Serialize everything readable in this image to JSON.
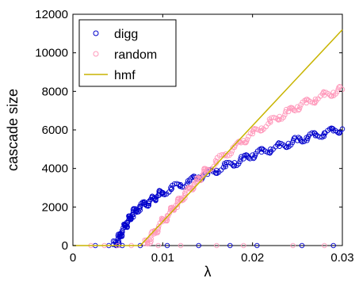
{
  "chart_data": {
    "type": "scatter",
    "xlabel": "λ",
    "ylabel": "cascade size",
    "xlim": [
      0,
      0.03
    ],
    "ylim": [
      0,
      12000
    ],
    "x_ticks": [
      {
        "value": 0,
        "label": "0"
      },
      {
        "value": 0.01,
        "label": "0.01"
      },
      {
        "value": 0.02,
        "label": "0.02"
      },
      {
        "value": 0.03,
        "label": "0.03"
      }
    ],
    "y_ticks": [
      {
        "value": 0,
        "label": "0"
      },
      {
        "value": 2000,
        "label": "2000"
      },
      {
        "value": 4000,
        "label": "4000"
      },
      {
        "value": 6000,
        "label": "6000"
      },
      {
        "value": 8000,
        "label": "8000"
      },
      {
        "value": 10000,
        "label": "10000"
      },
      {
        "value": 12000,
        "label": "12000"
      }
    ],
    "grid": false,
    "legend_position": "top-left",
    "series": [
      {
        "name": "digg",
        "kind": "scatter",
        "color": "#0000cc",
        "points": [
          [
            0.0045,
            50
          ],
          [
            0.005,
            200
          ],
          [
            0.0052,
            450
          ],
          [
            0.0055,
            700
          ],
          [
            0.0058,
            950
          ],
          [
            0.006,
            1200
          ],
          [
            0.0063,
            1400
          ],
          [
            0.0066,
            1600
          ],
          [
            0.007,
            1800
          ],
          [
            0.0075,
            2000
          ],
          [
            0.008,
            2150
          ],
          [
            0.0085,
            2300
          ],
          [
            0.009,
            2450
          ],
          [
            0.0095,
            2600
          ],
          [
            0.01,
            2750
          ],
          [
            0.011,
            2950
          ],
          [
            0.012,
            3150
          ],
          [
            0.013,
            3350
          ],
          [
            0.014,
            3550
          ],
          [
            0.015,
            3700
          ],
          [
            0.016,
            3900
          ],
          [
            0.017,
            4100
          ],
          [
            0.018,
            4300
          ],
          [
            0.019,
            4500
          ],
          [
            0.02,
            4700
          ],
          [
            0.021,
            4850
          ],
          [
            0.022,
            5000
          ],
          [
            0.023,
            5150
          ],
          [
            0.024,
            5300
          ],
          [
            0.025,
            5450
          ],
          [
            0.026,
            5600
          ],
          [
            0.027,
            5700
          ],
          [
            0.028,
            5850
          ],
          [
            0.029,
            5950
          ],
          [
            0.03,
            6050
          ]
        ],
        "zero_points": [
          0.0025,
          0.004,
          0.0055,
          0.0075,
          0.0105,
          0.014,
          0.0175,
          0.0205,
          0.0255,
          0.029
        ]
      },
      {
        "name": "random",
        "kind": "scatter",
        "color": "#ff99bb",
        "points": [
          [
            0.008,
            100
          ],
          [
            0.0085,
            300
          ],
          [
            0.009,
            600
          ],
          [
            0.0095,
            900
          ],
          [
            0.01,
            1250
          ],
          [
            0.0105,
            1550
          ],
          [
            0.011,
            1850
          ],
          [
            0.0115,
            2100
          ],
          [
            0.012,
            2350
          ],
          [
            0.0125,
            2650
          ],
          [
            0.013,
            2950
          ],
          [
            0.0135,
            3200
          ],
          [
            0.014,
            3450
          ],
          [
            0.0145,
            3700
          ],
          [
            0.015,
            3950
          ],
          [
            0.016,
            4350
          ],
          [
            0.017,
            4750
          ],
          [
            0.018,
            5100
          ],
          [
            0.019,
            5450
          ],
          [
            0.02,
            5800
          ],
          [
            0.021,
            6100
          ],
          [
            0.022,
            6400
          ],
          [
            0.023,
            6700
          ],
          [
            0.024,
            6950
          ],
          [
            0.025,
            7200
          ],
          [
            0.026,
            7400
          ],
          [
            0.027,
            7600
          ],
          [
            0.028,
            7800
          ],
          [
            0.029,
            7950
          ],
          [
            0.03,
            8100
          ]
        ],
        "zero_points": [
          0.002,
          0.0035,
          0.005,
          0.0065,
          0.0095,
          0.012,
          0.016,
          0.019,
          0.0245,
          0.028
        ]
      },
      {
        "name": "hmf",
        "kind": "line",
        "color": "#c8b400",
        "points": [
          [
            0,
            0
          ],
          [
            0.0075,
            0
          ],
          [
            0.03,
            11200
          ]
        ]
      }
    ]
  }
}
